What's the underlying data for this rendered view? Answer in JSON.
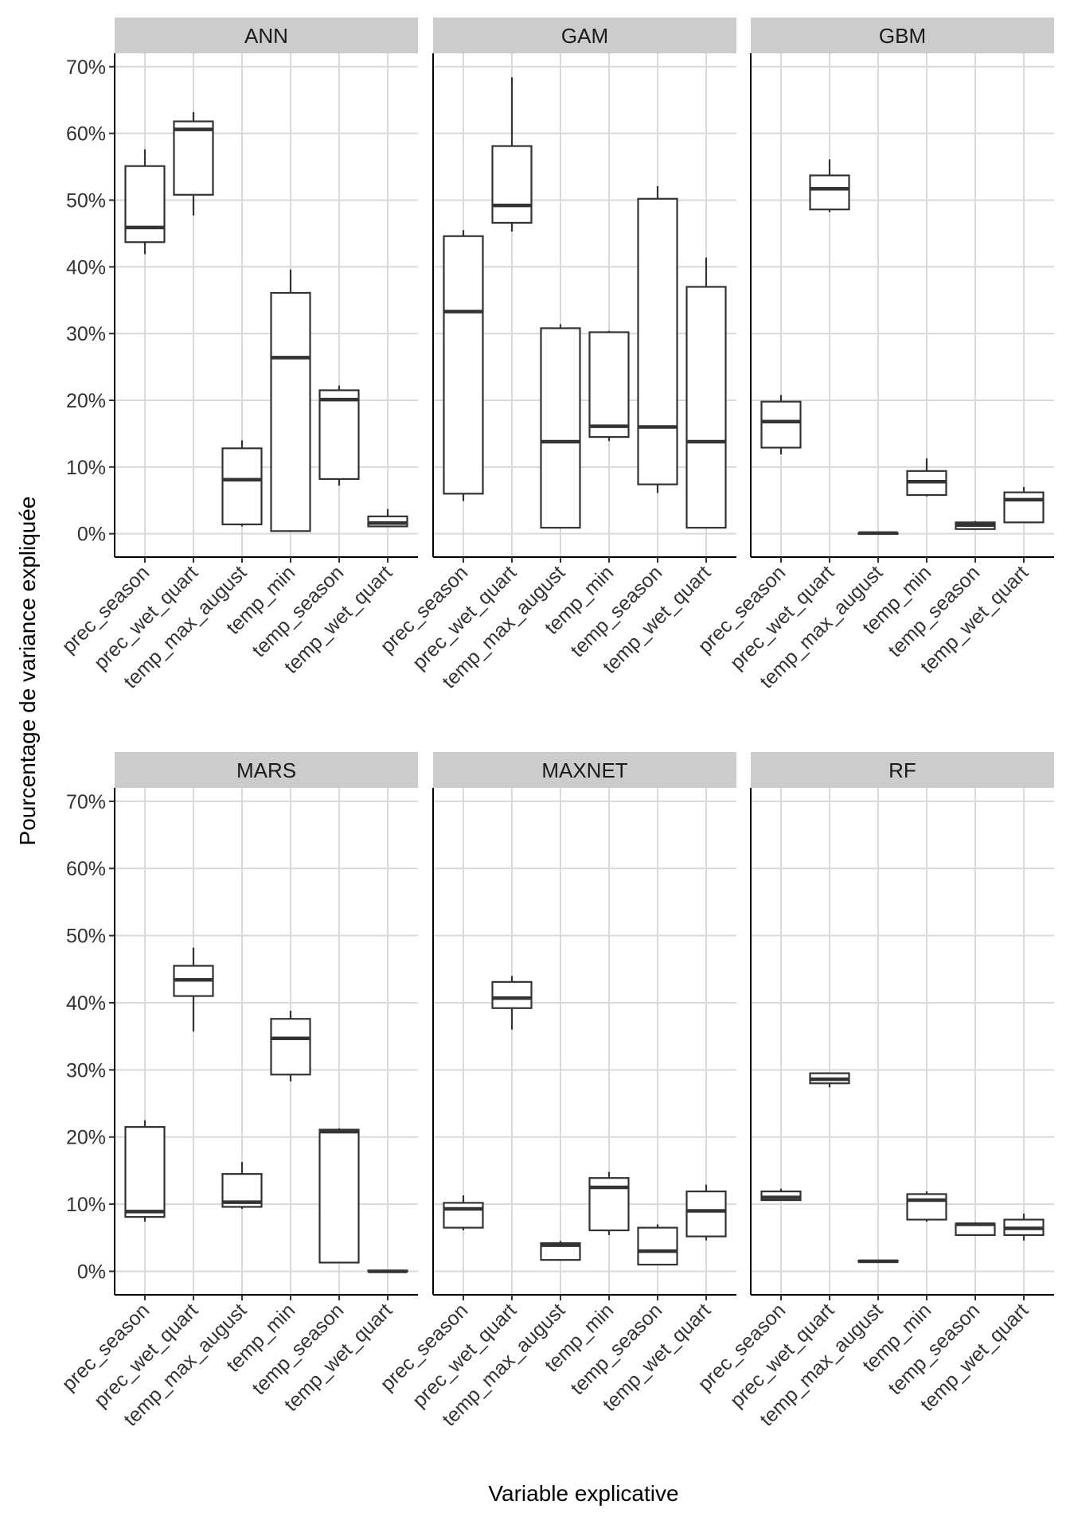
{
  "chart_data": {
    "type": "boxplot",
    "xlabel": "Variable explicative",
    "ylabel": "Pourcentage de variance expliquée",
    "ylim": [
      -3.5,
      72
    ],
    "y_ticks": [
      "0%",
      "10%",
      "20%",
      "30%",
      "40%",
      "50%",
      "60%",
      "70%"
    ],
    "y_tick_values": [
      0,
      10,
      20,
      30,
      40,
      50,
      60,
      70
    ],
    "grid": true,
    "categories": [
      "prec_season",
      "prec_wet_quart",
      "temp_max_august",
      "temp_min",
      "temp_season",
      "temp_wet_quart"
    ],
    "box_stats_order": [
      "lower_whisker",
      "q1",
      "median",
      "q3",
      "upper_whisker"
    ],
    "facets": [
      {
        "name": "ANN",
        "boxes": [
          [
            41.9,
            43.7,
            45.9,
            55.1,
            57.6
          ],
          [
            47.7,
            50.8,
            60.6,
            61.8,
            63.2
          ],
          [
            1.1,
            1.4,
            8.1,
            12.8,
            14.0
          ],
          [
            0.4,
            0.4,
            26.4,
            36.1,
            39.6
          ],
          [
            7.2,
            8.2,
            20.1,
            21.5,
            22.2
          ],
          [
            1.0,
            1.1,
            1.6,
            2.6,
            3.7
          ]
        ]
      },
      {
        "name": "GAM",
        "boxes": [
          [
            4.9,
            6.0,
            33.3,
            44.6,
            45.5
          ],
          [
            45.3,
            46.6,
            49.2,
            58.1,
            68.4
          ],
          [
            0.9,
            0.9,
            13.8,
            30.8,
            31.4
          ],
          [
            13.9,
            14.5,
            16.1,
            30.2,
            30.4
          ],
          [
            6.1,
            7.4,
            16.0,
            50.2,
            52.1
          ],
          [
            0.9,
            0.9,
            13.8,
            37.0,
            41.4
          ]
        ]
      },
      {
        "name": "GBM",
        "boxes": [
          [
            11.9,
            12.9,
            16.8,
            19.8,
            20.8
          ],
          [
            48.2,
            48.6,
            51.7,
            53.7,
            56.1
          ],
          [
            0.0,
            0.1,
            0.1,
            0.1,
            0.2
          ],
          [
            5.6,
            5.8,
            7.8,
            9.4,
            11.3
          ],
          [
            0.6,
            0.7,
            1.3,
            1.7,
            1.9
          ],
          [
            1.6,
            1.7,
            5.1,
            6.2,
            7.0
          ]
        ]
      },
      {
        "name": "MARS",
        "boxes": [
          [
            7.4,
            8.1,
            8.9,
            21.5,
            22.5
          ],
          [
            35.7,
            41.0,
            43.4,
            45.5,
            48.2
          ],
          [
            9.3,
            9.6,
            10.3,
            14.5,
            16.3
          ],
          [
            28.3,
            29.3,
            34.7,
            37.6,
            38.8
          ],
          [
            1.3,
            1.3,
            20.8,
            21.1,
            21.3
          ],
          [
            0.0,
            0.0,
            0.0,
            0.1,
            0.1
          ]
        ]
      },
      {
        "name": "MAXNET",
        "boxes": [
          [
            6.1,
            6.5,
            9.3,
            10.2,
            11.3
          ],
          [
            36.0,
            39.2,
            40.7,
            43.1,
            44.0
          ],
          [
            1.7,
            1.7,
            3.9,
            4.2,
            4.5
          ],
          [
            5.4,
            6.1,
            12.5,
            13.9,
            14.8
          ],
          [
            1.0,
            1.0,
            3.0,
            6.5,
            7.0
          ],
          [
            4.6,
            5.2,
            9.0,
            11.9,
            12.9
          ]
        ]
      },
      {
        "name": "RF",
        "boxes": [
          [
            10.5,
            10.6,
            11.0,
            11.9,
            12.3
          ],
          [
            27.4,
            28.0,
            28.6,
            29.5,
            29.6
          ],
          [
            1.3,
            1.4,
            1.5,
            1.6,
            1.7
          ],
          [
            7.4,
            7.7,
            10.6,
            11.5,
            11.9
          ],
          [
            5.3,
            5.4,
            7.0,
            7.1,
            7.3
          ],
          [
            4.6,
            5.4,
            6.4,
            7.7,
            8.6
          ]
        ]
      }
    ],
    "colors": {
      "box_line": "#333333",
      "strip_fill": "#cccccc",
      "grid": "#d9d9d9",
      "axis": "#000000"
    }
  }
}
